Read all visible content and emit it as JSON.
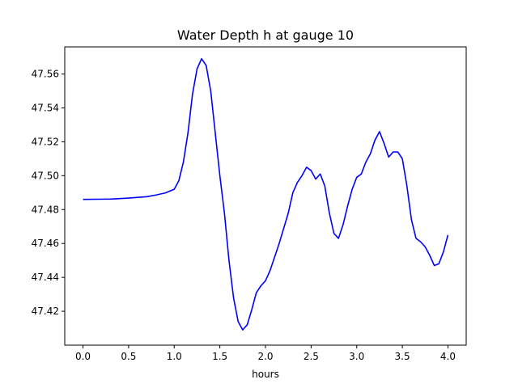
{
  "chart_data": {
    "type": "line",
    "title": "Water Depth h at gauge 10",
    "xlabel": "hours",
    "ylabel": "",
    "xlim": [
      -0.2,
      4.2
    ],
    "ylim": [
      47.4,
      47.576
    ],
    "xticks": [
      0.0,
      0.5,
      1.0,
      1.5,
      2.0,
      2.5,
      3.0,
      3.5,
      4.0
    ],
    "xtick_labels": [
      "0.0",
      "0.5",
      "1.0",
      "1.5",
      "2.0",
      "2.5",
      "3.0",
      "3.5",
      "4.0"
    ],
    "yticks": [
      47.42,
      47.44,
      47.46,
      47.48,
      47.5,
      47.52,
      47.54,
      47.56
    ],
    "ytick_labels": [
      "47.42",
      "47.44",
      "47.46",
      "47.48",
      "47.50",
      "47.52",
      "47.54",
      "47.56"
    ],
    "grid": false,
    "series": [
      {
        "color": "#0000ff",
        "x": [
          0.0,
          0.3,
          0.5,
          0.7,
          0.8,
          0.9,
          1.0,
          1.05,
          1.1,
          1.15,
          1.2,
          1.25,
          1.3,
          1.35,
          1.4,
          1.45,
          1.5,
          1.55,
          1.6,
          1.65,
          1.7,
          1.75,
          1.8,
          1.85,
          1.9,
          1.95,
          2.0,
          2.05,
          2.1,
          2.15,
          2.2,
          2.25,
          2.3,
          2.35,
          2.4,
          2.45,
          2.5,
          2.55,
          2.6,
          2.65,
          2.7,
          2.75,
          2.8,
          2.85,
          2.9,
          2.95,
          3.0,
          3.05,
          3.1,
          3.15,
          3.2,
          3.25,
          3.3,
          3.35,
          3.4,
          3.45,
          3.5,
          3.55,
          3.6,
          3.65,
          3.7,
          3.75,
          3.8,
          3.85,
          3.9,
          3.95,
          4.0
        ],
        "y": [
          47.486,
          47.4862,
          47.4868,
          47.4876,
          47.4886,
          47.4898,
          47.492,
          47.497,
          47.508,
          47.525,
          47.548,
          47.563,
          47.569,
          47.565,
          47.55,
          47.525,
          47.5,
          47.478,
          47.45,
          47.428,
          47.414,
          47.409,
          47.412,
          47.421,
          47.431,
          47.435,
          47.438,
          47.444,
          47.452,
          47.46,
          47.469,
          47.478,
          47.49,
          47.496,
          47.5,
          47.505,
          47.503,
          47.498,
          47.501,
          47.494,
          47.478,
          47.466,
          47.463,
          47.471,
          47.482,
          47.492,
          47.499,
          47.501,
          47.508,
          47.513,
          47.521,
          47.526,
          47.519,
          47.511,
          47.514,
          47.514,
          47.51,
          47.494,
          47.474,
          47.463,
          47.461,
          47.458,
          47.453,
          47.447,
          47.448,
          47.455,
          47.465
        ]
      }
    ]
  }
}
